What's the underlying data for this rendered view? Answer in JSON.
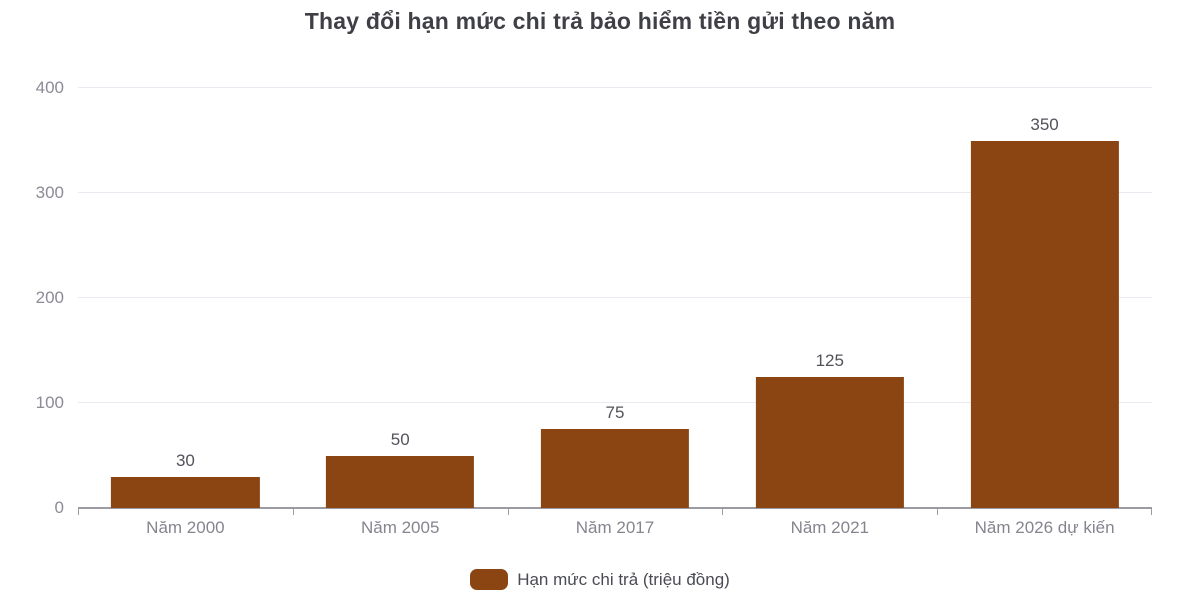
{
  "chart_data": {
    "type": "bar",
    "title": "Thay đổi hạn mức chi trả bảo hiểm tiền gửi theo năm",
    "categories": [
      "Năm 2000",
      "Năm 2005",
      "Năm 2017",
      "Năm 2021",
      "Năm 2026 dự kiến"
    ],
    "values": [
      30,
      50,
      75,
      125,
      350
    ],
    "data_labels": [
      "30",
      "50",
      "75",
      "125",
      "350"
    ],
    "legend": "Hạn mức chi trả (triệu đồng)",
    "ylabel": "",
    "xlabel": "",
    "ylim": [
      0,
      400
    ],
    "yticks": [
      0,
      100,
      200,
      300,
      400
    ],
    "grid": true,
    "legend_position": "bottom",
    "colors": {
      "bar": "#8B4513",
      "title_text": "#3f3f46",
      "axis_line": "#9b9ba4",
      "gridline": "#e9e9f0",
      "axis_tick_label": "#8b8b96",
      "value_label": "#52525b",
      "legend_text": "#4b4b55"
    }
  }
}
